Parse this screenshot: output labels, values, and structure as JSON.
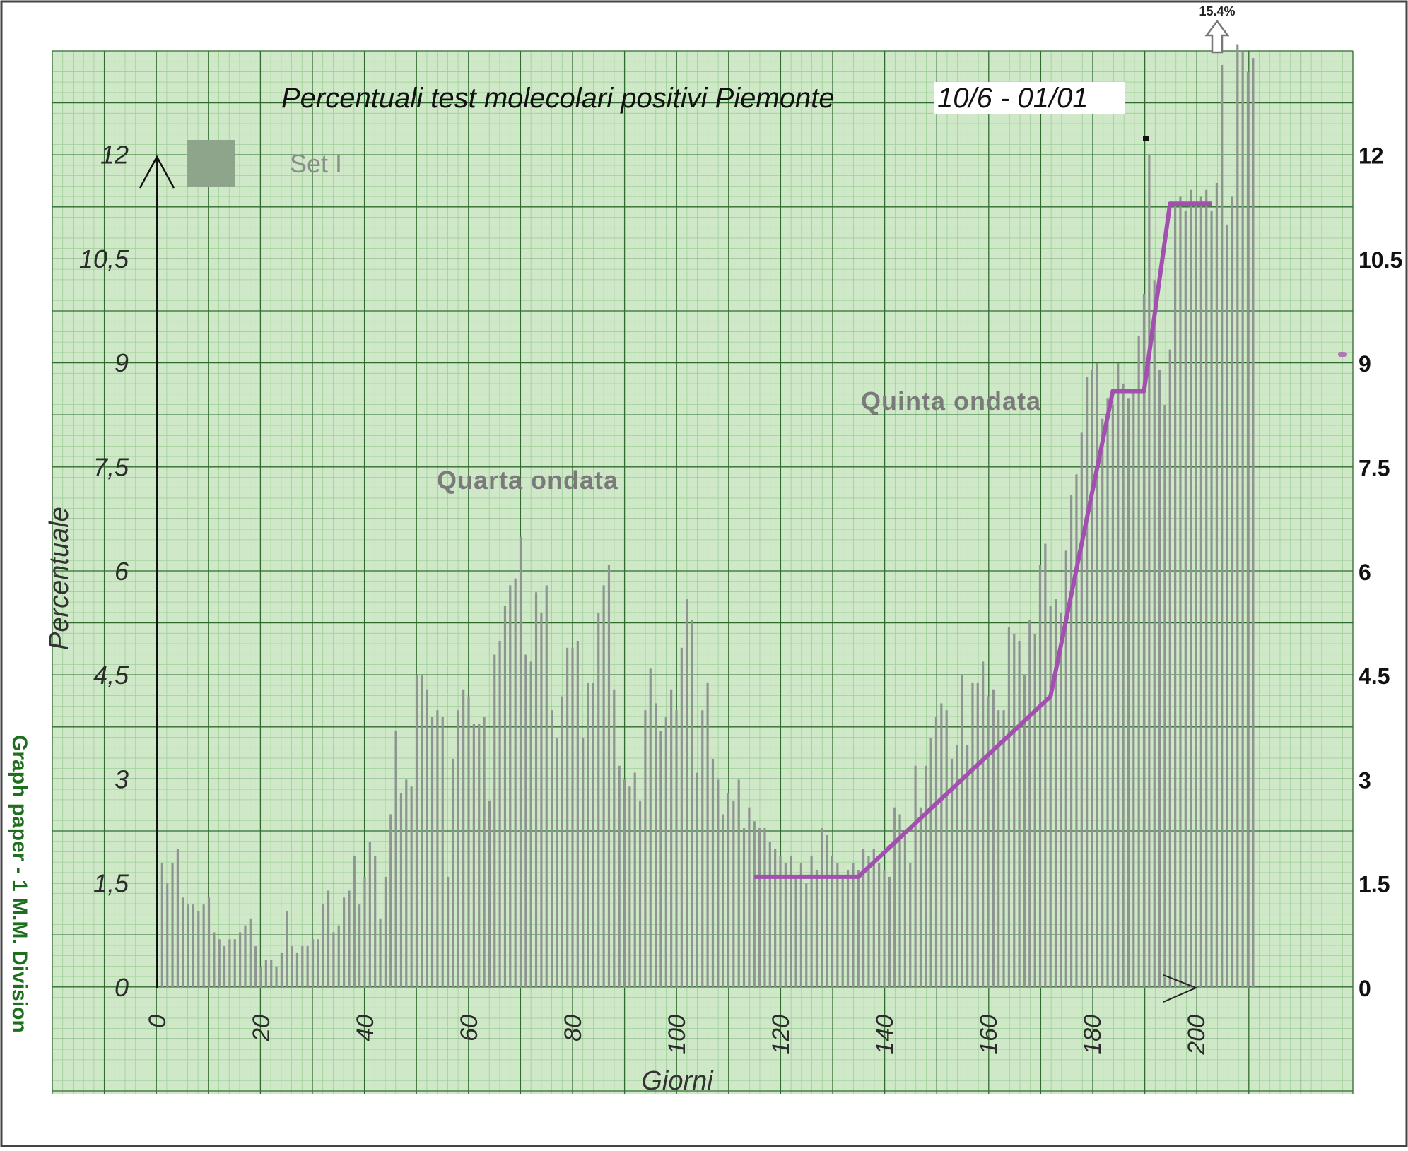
{
  "title": "Percentuali test molecolari positivi Piemonte",
  "date_range": "10/6 - 01/01",
  "legend_label": "Set I",
  "side_label": "Graph paper - 1 M.M. Division",
  "overflow_label": "15.4%",
  "colors": {
    "paper": "#cfe8c8",
    "grid_minor": "#9fcf98",
    "grid_major": "#2f6b2f",
    "bars": "#8e9490",
    "trend": "#a24fb0",
    "legend_swatch": "#8ea58c"
  },
  "chart_data": {
    "type": "bar",
    "title": "Percentuali test molecolari positivi Piemonte",
    "xlabel": "Giorni",
    "ylabel": "Percentuale",
    "xlim": [
      0,
      205
    ],
    "ylim": [
      0,
      12.5
    ],
    "grid": true,
    "legend_position": "top-left",
    "left_ticks": [
      "0",
      "1,5",
      "3",
      "4,5",
      "6",
      "7,5",
      "9",
      "10,5",
      "12"
    ],
    "right_ticks": [
      "0",
      "1.5",
      "3",
      "4.5",
      "6",
      "7.5",
      "9",
      "10.5",
      "12"
    ],
    "tick_values": [
      0,
      1.5,
      3,
      4.5,
      6,
      7.5,
      9,
      10.5,
      12
    ],
    "x_ticks": [
      "0",
      "20",
      "40",
      "60",
      "80",
      "100",
      "120",
      "140",
      "160",
      "180",
      "200"
    ],
    "x_tick_values": [
      0,
      20,
      40,
      60,
      80,
      100,
      120,
      140,
      160,
      180,
      200
    ],
    "annotations": [
      {
        "text": "Quarta ondata",
        "x": 75,
        "y": 7.4
      },
      {
        "text": "Quinta ondata",
        "x": 163,
        "y": 8.6
      },
      {
        "text": "15.4%",
        "x": 203,
        "y": 13.2
      }
    ],
    "series": [
      {
        "name": "Set I",
        "type": "bar",
        "values": [
          1.8,
          1.8,
          1.5,
          1.8,
          2.0,
          1.3,
          1.2,
          1.2,
          1.1,
          1.2,
          1.3,
          0.8,
          0.7,
          0.6,
          0.7,
          0.7,
          0.8,
          0.9,
          1.0,
          0.6,
          0.3,
          0.4,
          0.4,
          0.3,
          0.5,
          1.1,
          0.6,
          0.5,
          0.6,
          0.6,
          0.7,
          0.7,
          1.2,
          1.4,
          0.8,
          0.9,
          1.3,
          1.4,
          1.9,
          1.2,
          1.6,
          2.1,
          1.9,
          1.0,
          1.6,
          2.5,
          3.7,
          2.8,
          3.0,
          2.9,
          4.5,
          4.5,
          4.3,
          3.9,
          4.0,
          3.9,
          1.6,
          3.3,
          4.0,
          4.3,
          4.2,
          3.8,
          3.8,
          3.9,
          2.7,
          4.8,
          5.0,
          5.5,
          5.8,
          5.9,
          6.5,
          4.8,
          4.7,
          5.7,
          5.4,
          5.8,
          4.0,
          3.6,
          4.2,
          4.9,
          4.9,
          5.0,
          3.6,
          4.4,
          4.4,
          5.4,
          5.8,
          6.1,
          4.3,
          3.2,
          3.0,
          2.9,
          3.1,
          2.7,
          4.0,
          4.6,
          4.1,
          3.7,
          3.9,
          4.3,
          4.0,
          4.9,
          5.6,
          5.3,
          3.1,
          4.0,
          4.4,
          3.3,
          3.0,
          2.5,
          2.8,
          2.7,
          3.0,
          2.3,
          2.6,
          2.4,
          2.3,
          2.3,
          2.1,
          2.0,
          1.9,
          1.8,
          1.9,
          1.6,
          1.8,
          1.5,
          1.9,
          1.7,
          2.3,
          2.2,
          1.9,
          1.8,
          1.6,
          1.7,
          1.8,
          1.7,
          2.0,
          1.9,
          2.0,
          1.8,
          1.7,
          1.6,
          2.6,
          2.5,
          2.2,
          1.8,
          3.2,
          2.6,
          3.2,
          3.6,
          3.9,
          4.1,
          4.0,
          3.3,
          3.5,
          4.5,
          3.5,
          4.4,
          4.4,
          4.7,
          4.2,
          4.3,
          4.0,
          4.0,
          5.2,
          5.1,
          5.0,
          4.5,
          5.3,
          5.1,
          6.1,
          6.4,
          5.5,
          5.6,
          5.4,
          6.3,
          7.1,
          7.4,
          8.0,
          8.8,
          8.9,
          9.0,
          8.2,
          8.5,
          8.4,
          9.0,
          8.7,
          8.5,
          8.6,
          9.4,
          10.0,
          12.0,
          10.2,
          8.9,
          8.4,
          9.2,
          11.3,
          11.4,
          11.2,
          11.5,
          11.3,
          11.4,
          11.5,
          11.2,
          11.6,
          13.3,
          11.0,
          11.4,
          13.6,
          13.5,
          13.2,
          13.4
        ]
      },
      {
        "name": "",
        "type": "line",
        "x": [
          115,
          135,
          172,
          184,
          190,
          195,
          203
        ],
        "y": [
          1.6,
          1.6,
          4.2,
          8.6,
          8.6,
          11.3,
          11.3
        ]
      }
    ]
  }
}
